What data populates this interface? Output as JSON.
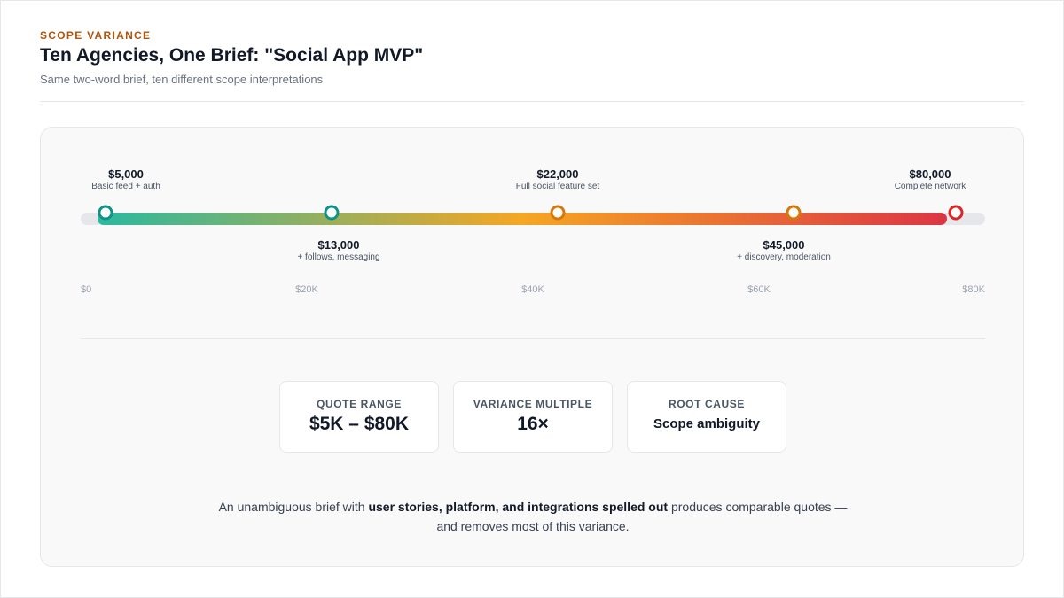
{
  "header": {
    "eyebrow": "SCOPE VARIANCE",
    "title": "Ten Agencies, One Brief: \"Social App MVP\"",
    "subtitle": "Same two-word brief, ten different scope interpretations"
  },
  "colors": {
    "accent": "#b45309",
    "gradient": [
      "#2bb9a0",
      "#f5a623",
      "#dc3545"
    ]
  },
  "chart_data": {
    "type": "scatter",
    "title": "",
    "xlabel": "",
    "ylabel": "",
    "xlim": [
      0,
      80000
    ],
    "x_ticks": [
      "$0",
      "$20K",
      "$40K",
      "$60K",
      "$80K"
    ],
    "points": [
      {
        "value": 5000,
        "label": "$5,000",
        "desc": "Basic feed + auth",
        "position": "above",
        "color": "#0d9488"
      },
      {
        "value": 13000,
        "label": "$13,000",
        "desc": "+ follows, messaging",
        "position": "below",
        "color": "#0d9488"
      },
      {
        "value": 22000,
        "label": "$22,000",
        "desc": "Full social feature set",
        "position": "above",
        "color": "#d97706"
      },
      {
        "value": 45000,
        "label": "$45,000",
        "desc": "+ discovery, moderation",
        "position": "below",
        "color": "#d97706"
      },
      {
        "value": 80000,
        "label": "$80,000",
        "desc": "Complete network",
        "position": "above",
        "color": "#dc2626"
      }
    ],
    "grid": false,
    "legend": "none"
  },
  "stats": [
    {
      "label": "QUOTE RANGE",
      "value": "$5K – $80K"
    },
    {
      "label": "VARIANCE MULTIPLE",
      "value": "16×"
    },
    {
      "label": "ROOT CAUSE",
      "value": "Scope ambiguity"
    }
  ],
  "note": {
    "before": "An unambiguous brief with ",
    "bold": "user stories, platform, and integrations spelled out",
    "after": " produces comparable quotes —",
    "line2": "and removes most of this variance."
  }
}
